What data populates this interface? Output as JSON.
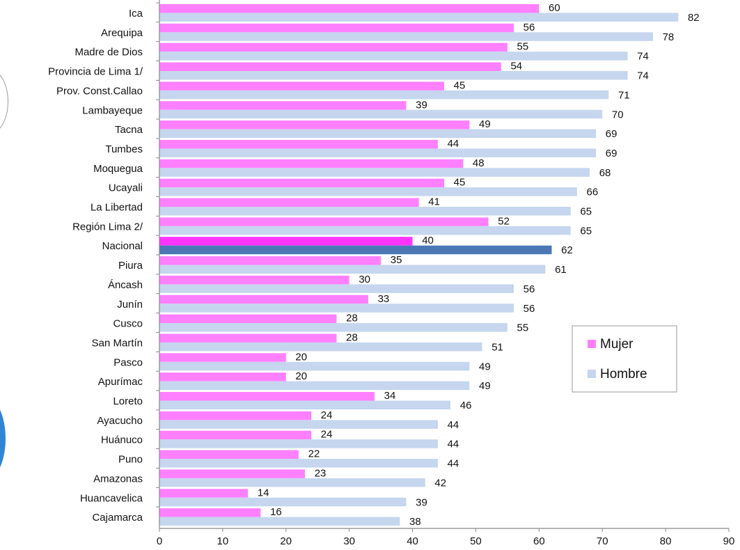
{
  "chart_data": {
    "type": "bar",
    "orientation": "horizontal",
    "categories": [
      "Ica",
      "Arequipa",
      "Madre de Dios",
      "Provincia de Lima 1/",
      "Prov. Const.Callao",
      "Lambayeque",
      "Tacna",
      "Tumbes",
      "Moquegua",
      "Ucayali",
      "La Libertad",
      "Región Lima 2/",
      "Nacional",
      "Piura",
      "Áncash",
      "Junín",
      "Cusco",
      "San Martín",
      "Pasco",
      "Apurímac",
      "Loreto",
      "Ayacucho",
      "Huánuco",
      "Puno",
      "Amazonas",
      "Huancavelica",
      "Cajamarca"
    ],
    "series": [
      {
        "name": "Mujer",
        "color": "#ff80ff",
        "highlight_color": "#ff33ff",
        "values": [
          60,
          56,
          55,
          54,
          45,
          39,
          49,
          44,
          48,
          45,
          41,
          52,
          40,
          35,
          30,
          33,
          28,
          28,
          20,
          20,
          34,
          24,
          24,
          22,
          23,
          14,
          16
        ]
      },
      {
        "name": "Hombre",
        "color": "#c5d6ee",
        "highlight_color": "#4a78b4",
        "values": [
          82,
          78,
          74,
          74,
          71,
          70,
          69,
          69,
          68,
          66,
          65,
          65,
          62,
          61,
          56,
          56,
          55,
          51,
          49,
          49,
          46,
          44,
          44,
          44,
          42,
          39,
          38
        ]
      }
    ],
    "highlight_category": "Nacional",
    "xlim": [
      0,
      90
    ],
    "xticks": [
      0,
      10,
      20,
      30,
      40,
      50,
      60,
      70,
      80,
      90
    ],
    "title": "",
    "xlabel": "",
    "ylabel": "",
    "grid": false,
    "legend": {
      "position": "right",
      "entries": [
        "Mujer",
        "Hombre"
      ]
    }
  }
}
